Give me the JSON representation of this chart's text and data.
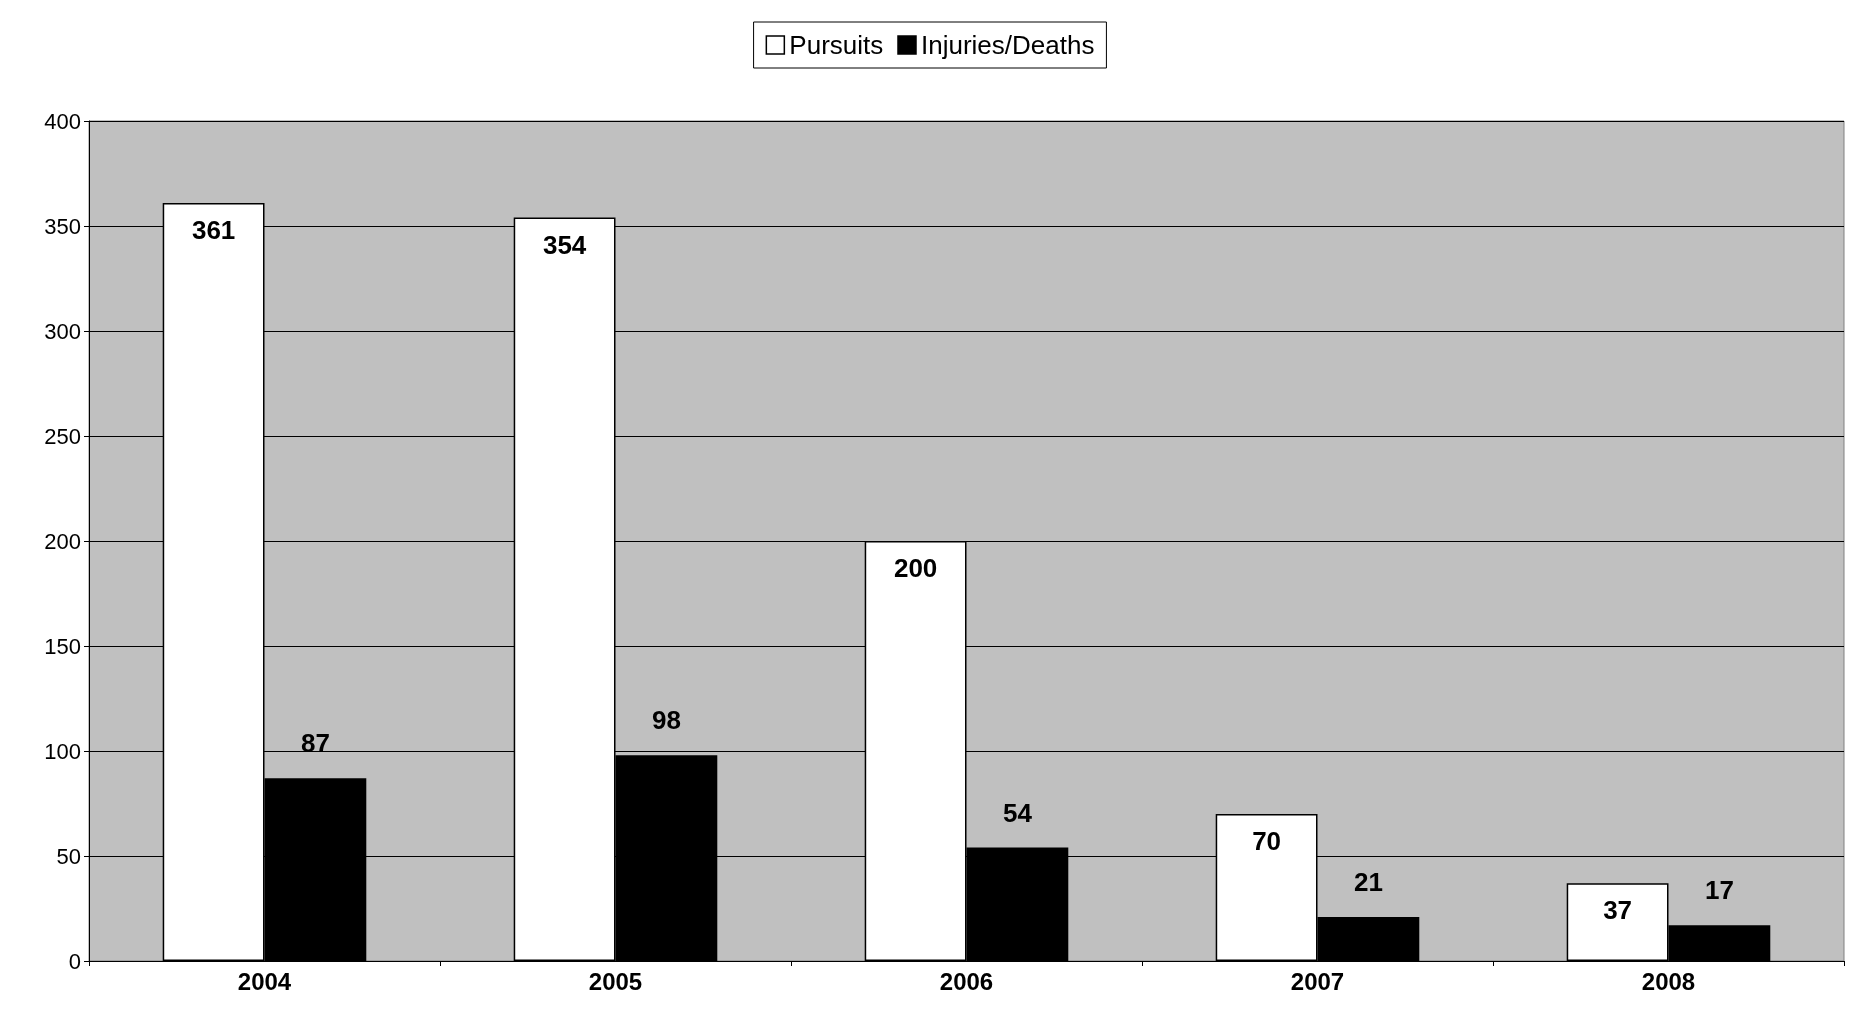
{
  "chart_data": {
    "type": "bar",
    "categories": [
      "2004",
      "2005",
      "2006",
      "2007",
      "2008"
    ],
    "series": [
      {
        "name": "Pursuits",
        "color": "#ffffff",
        "values": [
          361,
          354,
          200,
          70,
          37
        ]
      },
      {
        "name": "Injuries/Deaths",
        "color": "#000000",
        "values": [
          87,
          98,
          54,
          21,
          17
        ]
      }
    ],
    "ylim": [
      0,
      400
    ],
    "yticks": [
      0,
      50,
      100,
      150,
      200,
      250,
      300,
      350,
      400
    ],
    "grid": "y",
    "legend": "top",
    "data_labels": true
  }
}
